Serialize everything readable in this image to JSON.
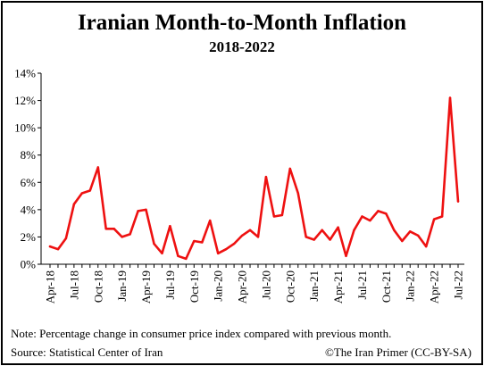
{
  "chart_data": {
    "type": "line",
    "title": "Iranian Month-to-Month Inflation",
    "subtitle": "2018-2022",
    "xlabel": "",
    "ylabel": "",
    "ylim": [
      0,
      14
    ],
    "yticks": [
      "0%",
      "2%",
      "4%",
      "6%",
      "8%",
      "10%",
      "12%",
      "14%"
    ],
    "xtick_labels": [
      "Apr-18",
      "Jul-18",
      "Oct-18",
      "Jan-19",
      "Apr-19",
      "Jul-19",
      "Oct-19",
      "Jan-20",
      "Apr-20",
      "Jul-20",
      "Oct-20",
      "Jan-21",
      "Apr-21",
      "Jul-21",
      "Oct-21",
      "Jan-22",
      "Apr-22",
      "Jul-22"
    ],
    "grid": false,
    "line_color": "#ee1111",
    "series": [
      {
        "values": [
          1.3,
          1.1,
          1.9,
          4.4,
          5.2,
          5.4,
          7.1,
          2.6,
          2.6,
          2.0,
          2.2,
          3.9,
          4.0,
          1.5,
          0.8,
          2.8,
          0.6,
          0.4,
          1.7,
          1.6,
          3.2,
          0.8,
          1.1,
          1.5,
          2.1,
          2.5,
          2.0,
          6.4,
          3.5,
          3.6,
          7.0,
          5.2,
          2.0,
          1.8,
          2.5,
          1.8,
          2.7,
          0.6,
          2.5,
          3.5,
          3.2,
          3.9,
          3.7,
          2.5,
          1.7,
          2.4,
          2.1,
          1.3,
          3.3,
          3.5,
          12.2,
          4.6
        ]
      }
    ]
  },
  "footer": {
    "note": "Note: Percentage change in consumer price index compared with previous month.",
    "source": "Source: Statistical Center of Iran",
    "credit": "©The Iran Primer (CC-BY-SA)"
  }
}
